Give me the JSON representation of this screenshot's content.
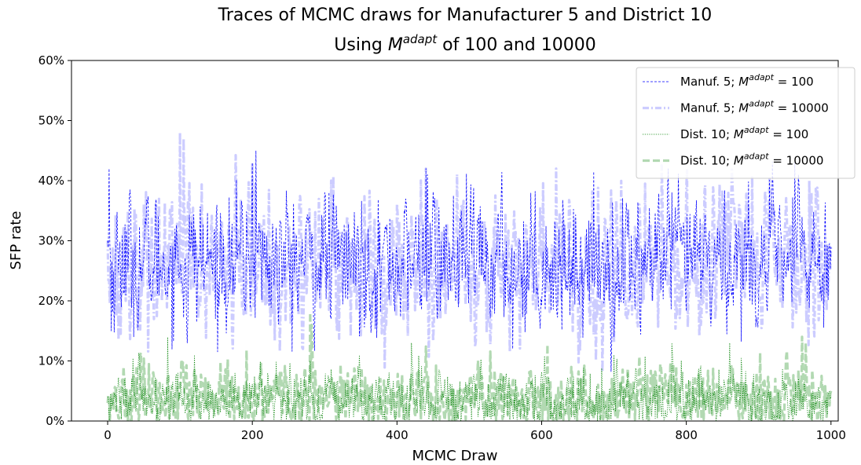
{
  "chart_data": {
    "type": "line",
    "title_line1": "Traces of MCMC draws for Manufacturer 5 and District 10",
    "title_line2_pre": "Using ",
    "title_M": "M",
    "title_sup": "adapt",
    "title_line2_post": " of 100 and 10000",
    "xlabel": "MCMC Draw",
    "ylabel": "SFP rate",
    "xlim": [
      -50,
      1010
    ],
    "ylim": [
      0,
      0.6
    ],
    "xticks": [
      0,
      200,
      400,
      600,
      800,
      1000
    ],
    "xtick_labels": [
      "0",
      "200",
      "400",
      "600",
      "800",
      "1000"
    ],
    "yticks": [
      0,
      0.1,
      0.2,
      0.3,
      0.4,
      0.5,
      0.6
    ],
    "ytick_labels": [
      "0%",
      "10%",
      "20%",
      "30%",
      "40%",
      "50%",
      "60%"
    ],
    "legend_position": "top-right",
    "grid": false,
    "series": [
      {
        "name_prefix": "Manuf. 5; ",
        "name_M": "M",
        "name_sup": "adapt",
        "name_suffix": " = 100",
        "color": "#0000ff",
        "opacity": 1.0,
        "width": 0.8,
        "dash": "3,2",
        "keypoints_x": [
          0,
          2,
          5,
          20,
          100,
          110,
          200,
          205,
          300,
          440,
          442,
          500,
          560,
          620,
          700,
          780,
          860,
          950,
          955,
          1000
        ],
        "keypoints_y": [
          0.3,
          0.42,
          0.15,
          0.31,
          0.25,
          0.13,
          0.43,
          0.45,
          0.38,
          0.42,
          0.41,
          0.31,
          0.12,
          0.2,
          0.14,
          0.38,
          0.29,
          0.43,
          0.41,
          0.29
        ],
        "mean": 0.265,
        "spread": 0.055
      },
      {
        "name_prefix": "Manuf. 5; ",
        "name_M": "M",
        "name_sup": "adapt",
        "name_suffix": " = 10000",
        "color": "#0000ff",
        "opacity": 0.2,
        "width": 3.2,
        "dash": "8,3,2,3",
        "keypoints_x": [
          0,
          100,
          105,
          200,
          300,
          440,
          520,
          620,
          700,
          800,
          970,
          1000
        ],
        "keypoints_y": [
          0.3,
          0.48,
          0.47,
          0.43,
          0.26,
          0.42,
          0.29,
          0.42,
          0.13,
          0.39,
          0.4,
          0.29
        ],
        "mean": 0.26,
        "spread": 0.06
      },
      {
        "name_prefix": "Dist. 10; ",
        "name_M": "M",
        "name_sup": "adapt",
        "name_suffix": " = 100",
        "color": "#008000",
        "opacity": 1.0,
        "width": 0.8,
        "dash": "1.2,1.6",
        "keypoints_x": [
          0,
          120,
          280,
          420,
          540,
          700,
          780,
          860,
          1000
        ],
        "keypoints_y": [
          0.04,
          0.11,
          0.1,
          0.13,
          0.07,
          0.11,
          0.13,
          0.13,
          0.04
        ],
        "mean": 0.035,
        "spread": 0.025
      },
      {
        "name_prefix": "Dist. 10; ",
        "name_M": "M",
        "name_sup": "adapt",
        "name_suffix": " = 10000",
        "color": "#008000",
        "opacity": 0.3,
        "width": 3.2,
        "dash": "9,4",
        "keypoints_x": [
          0,
          45,
          280,
          282,
          600,
          960,
          965,
          1000
        ],
        "keypoints_y": [
          0.03,
          0.11,
          0.18,
          0.16,
          0.06,
          0.14,
          0.13,
          0.05
        ],
        "mean": 0.035,
        "spread": 0.027
      }
    ]
  }
}
